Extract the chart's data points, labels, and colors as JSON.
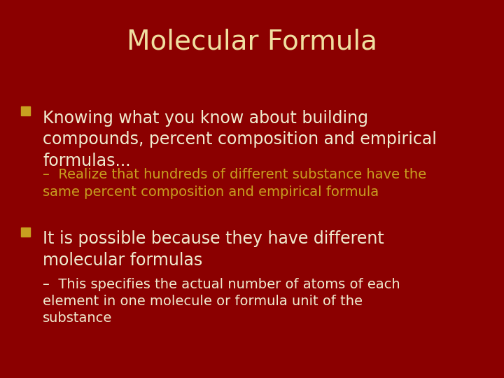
{
  "title": "Molecular Formula",
  "title_color": "#F0DFA0",
  "title_fontsize": 28,
  "background_color": "#8B0000",
  "header_color": "#6B0000",
  "bullet1_text": "Knowing what you know about building\ncompounds, percent composition and empirical\nformulas...",
  "bullet1_color": "#F0ECD0",
  "bullet1_fontsize": 17,
  "bullet1_square_color": "#C8A020",
  "sub1_text": "Realize that hundreds of different substance have the\nsame percent composition and empirical formula",
  "sub1_color": "#C8A020",
  "sub1_fontsize": 14,
  "bullet2_text": "It is possible because they have different\nmolecular formulas",
  "bullet2_color": "#F0ECD0",
  "bullet2_fontsize": 17,
  "bullet2_square_color": "#C8A020",
  "sub2_text": "This specifies the actual number of atoms of each\nelement in one molecule or formula unit of the\nsubstance",
  "sub2_color": "#F0ECD0",
  "sub2_fontsize": 14
}
